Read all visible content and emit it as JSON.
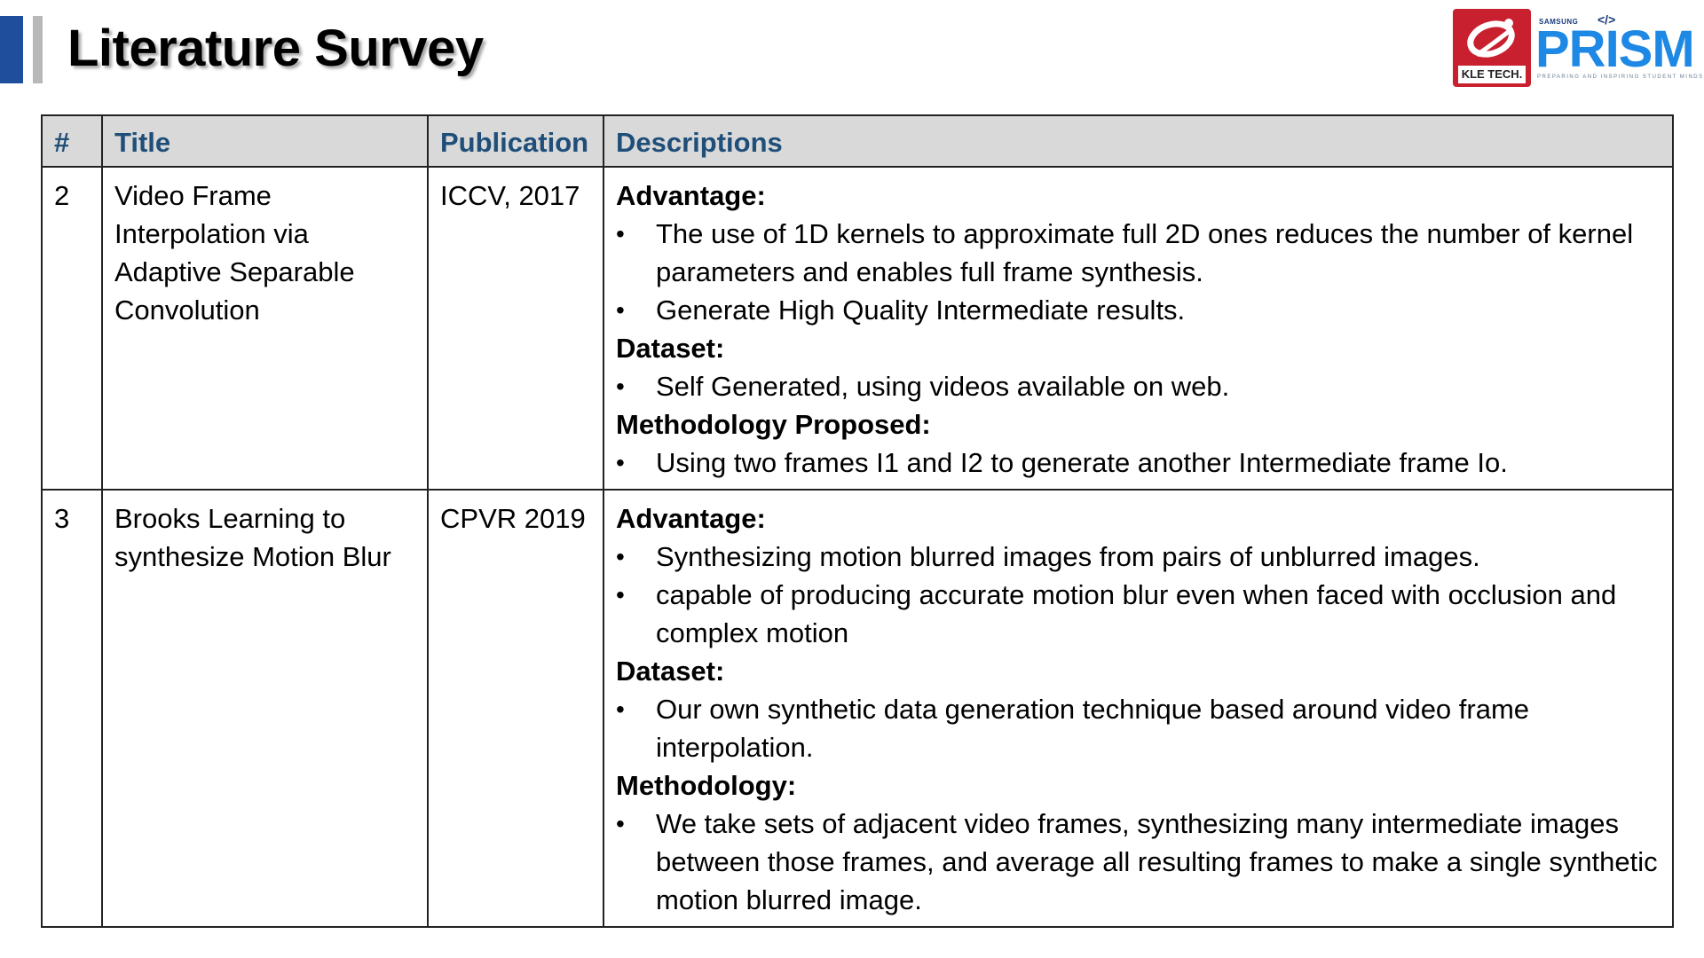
{
  "slide": {
    "title": "Literature Survey"
  },
  "logos": {
    "kle_text": "KLE TECH.",
    "samsung_text": "SAMSUNG",
    "prism_code_glyph": "</>",
    "prism_word": "PRISM",
    "prism_tagline": "PREPARING AND INSPIRING STUDENT MINDS"
  },
  "table": {
    "headers": [
      "#",
      "Title",
      "Publication",
      "Descriptions"
    ],
    "rows": [
      {
        "num": "2",
        "title": "Video Frame Interpolation via Adaptive Separable Convolution",
        "publication": "ICCV, 2017",
        "sections": [
          {
            "heading": "Advantage:",
            "bullets": [
              "The use of 1D kernels to approximate full 2D ones reduces the number of kernel parameters and enables full frame synthesis.",
              "Generate High Quality Intermediate results."
            ]
          },
          {
            "heading": "Dataset:",
            "bullets": [
              "Self Generated, using videos available on web."
            ]
          },
          {
            "heading": "Methodology Proposed:",
            "bullets": [
              "Using two frames I1 and I2 to generate another Intermediate frame Io."
            ]
          }
        ]
      },
      {
        "num": "3",
        "title": "Brooks Learning to synthesize Motion Blur",
        "publication": "CPVR 2019",
        "sections": [
          {
            "heading": "Advantage:",
            "bullets": [
              "Synthesizing motion blurred images from pairs of unblurred images.",
              "capable of producing accurate motion blur even when faced with occlusion and complex motion"
            ]
          },
          {
            "heading": "Dataset:",
            "bullets": [
              "Our own synthetic data generation technique based around video frame interpolation."
            ]
          },
          {
            "heading": "Methodology:",
            "bullets": [
              "We take sets of adjacent video frames, synthesizing many intermediate images between those frames, and average all resulting frames to make a single synthetic motion blurred image."
            ]
          }
        ]
      }
    ]
  }
}
